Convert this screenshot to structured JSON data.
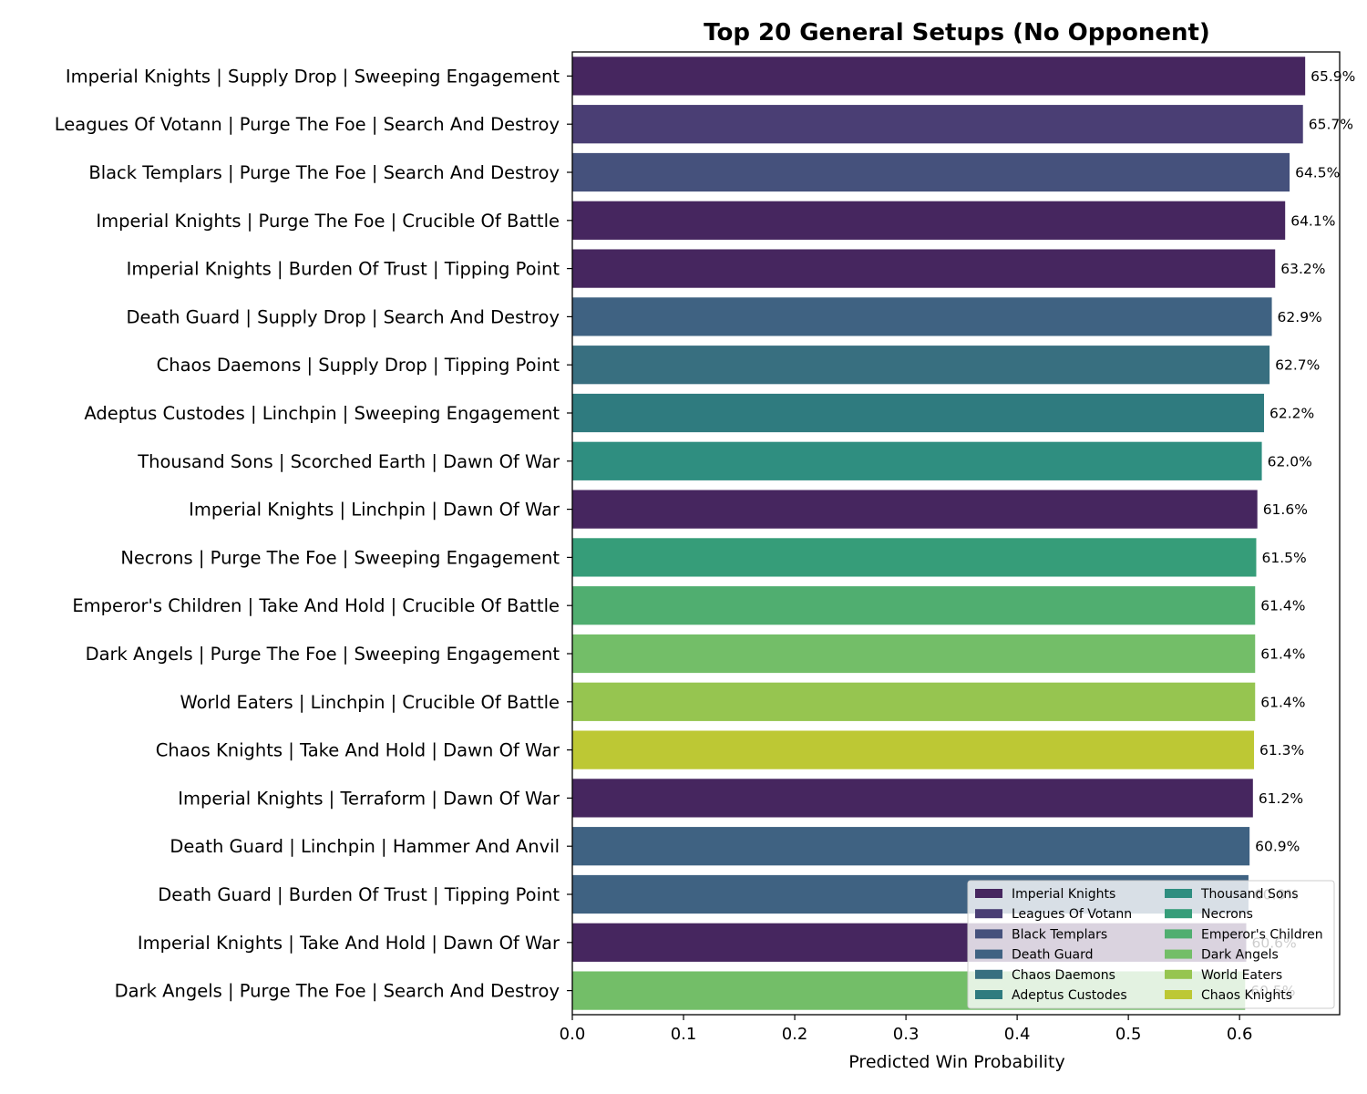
{
  "chart_data": {
    "type": "bar",
    "orientation": "horizontal",
    "title": "Top 20 General Setups (No Opponent)",
    "xlabel": "Predicted Win Probability",
    "ylabel": "",
    "xlim": [
      0,
      0.69
    ],
    "xticks": [
      "0.0",
      "0.1",
      "0.2",
      "0.3",
      "0.4",
      "0.5",
      "0.6"
    ],
    "xtick_values": [
      0,
      0.1,
      0.2,
      0.3,
      0.4,
      0.5,
      0.6
    ],
    "grid": false,
    "legend_position": "lower-right",
    "categories": [
      "Imperial Knights | Supply Drop | Sweeping Engagement",
      "Leagues Of Votann | Purge The Foe | Search And Destroy",
      "Black Templars | Purge The Foe | Search And Destroy",
      "Imperial Knights | Purge The Foe | Crucible Of Battle",
      "Imperial Knights | Burden Of Trust | Tipping Point",
      "Death Guard | Supply Drop | Search And Destroy",
      "Chaos Daemons | Supply Drop | Tipping Point",
      "Adeptus Custodes | Linchpin | Sweeping Engagement",
      "Thousand Sons | Scorched Earth | Dawn Of War",
      "Imperial Knights | Linchpin | Dawn Of War",
      "Necrons | Purge The Foe | Sweeping Engagement",
      "Emperor's Children | Take And Hold | Crucible Of Battle",
      "Dark Angels | Purge The Foe | Sweeping Engagement",
      "World Eaters | Linchpin | Crucible Of Battle",
      "Chaos Knights | Take And Hold | Dawn Of War",
      "Imperial Knights | Terraform | Dawn Of War",
      "Death Guard | Linchpin | Hammer And Anvil",
      "Death Guard | Burden Of Trust | Tipping Point",
      "Imperial Knights | Take And Hold | Dawn Of War",
      "Dark Angels | Purge The Foe | Search And Destroy"
    ],
    "values": [
      0.659,
      0.657,
      0.645,
      0.641,
      0.632,
      0.629,
      0.627,
      0.622,
      0.62,
      0.616,
      0.615,
      0.614,
      0.614,
      0.614,
      0.613,
      0.612,
      0.609,
      0.608,
      0.606,
      0.605
    ],
    "value_labels": [
      "65.9%",
      "65.7%",
      "64.5%",
      "64.1%",
      "63.2%",
      "62.9%",
      "62.7%",
      "62.2%",
      "62.0%",
      "61.6%",
      "61.5%",
      "61.4%",
      "61.4%",
      "61.4%",
      "61.3%",
      "61.2%",
      "60.9%",
      "60.8%",
      "60.6%",
      "60.5%"
    ],
    "bar_factions": [
      "Imperial Knights",
      "Leagues Of Votann",
      "Black Templars",
      "Imperial Knights",
      "Imperial Knights",
      "Death Guard",
      "Chaos Daemons",
      "Adeptus Custodes",
      "Thousand Sons",
      "Imperial Knights",
      "Necrons",
      "Emperor's Children",
      "Dark Angels",
      "World Eaters",
      "Chaos Knights",
      "Imperial Knights",
      "Death Guard",
      "Death Guard",
      "Imperial Knights",
      "Dark Angels"
    ],
    "legend": [
      {
        "name": "Imperial Knights",
        "color": "#46265f"
      },
      {
        "name": "Leagues Of Votann",
        "color": "#4a3e74"
      },
      {
        "name": "Black Templars",
        "color": "#45517c"
      },
      {
        "name": "Death Guard",
        "color": "#3f6282"
      },
      {
        "name": "Chaos Daemons",
        "color": "#386f80"
      },
      {
        "name": "Adeptus Custodes",
        "color": "#2f7b7f"
      },
      {
        "name": "Thousand Sons",
        "color": "#2f8e80"
      },
      {
        "name": "Necrons",
        "color": "#369d79"
      },
      {
        "name": "Emperor's Children",
        "color": "#50ae70"
      },
      {
        "name": "Dark Angels",
        "color": "#73be68"
      },
      {
        "name": "World Eaters",
        "color": "#96c550"
      },
      {
        "name": "Chaos Knights",
        "color": "#bdc834"
      }
    ]
  }
}
